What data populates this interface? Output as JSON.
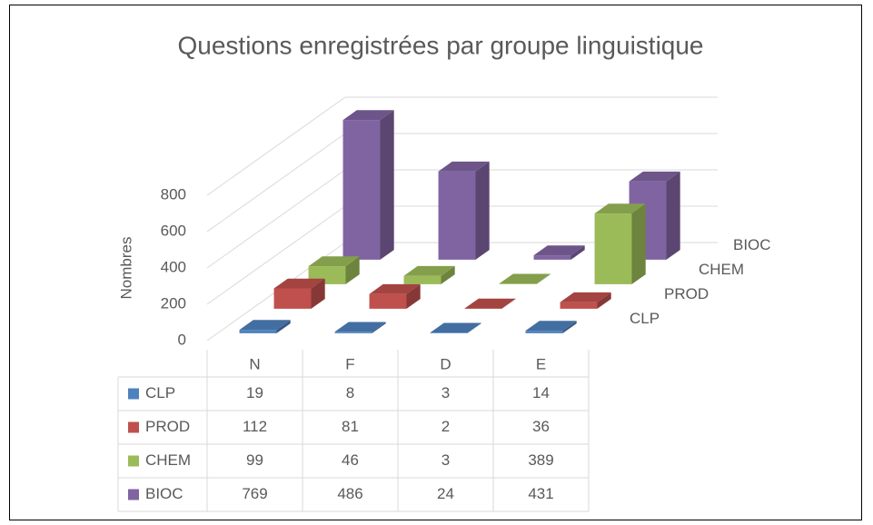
{
  "chart_data": {
    "type": "bar3d",
    "title": "Questions enregistrées par groupe linguistique",
    "y_label": "Nombres",
    "categories": [
      "N",
      "F",
      "D",
      "E"
    ],
    "series": [
      {
        "name": "CLP",
        "color": "#4f81bd",
        "values": [
          19,
          8,
          3,
          14
        ]
      },
      {
        "name": "PROD",
        "color": "#c0504d",
        "values": [
          112,
          81,
          2,
          36
        ]
      },
      {
        "name": "CHEM",
        "color": "#9bbb59",
        "values": [
          99,
          46,
          3,
          389
        ]
      },
      {
        "name": "BIOC",
        "color": "#8064a2",
        "values": [
          769,
          486,
          24,
          431
        ]
      }
    ],
    "ylim": [
      0,
      800
    ],
    "yticks": [
      0,
      200,
      400,
      600,
      800
    ],
    "grid": true,
    "data_table": true
  }
}
